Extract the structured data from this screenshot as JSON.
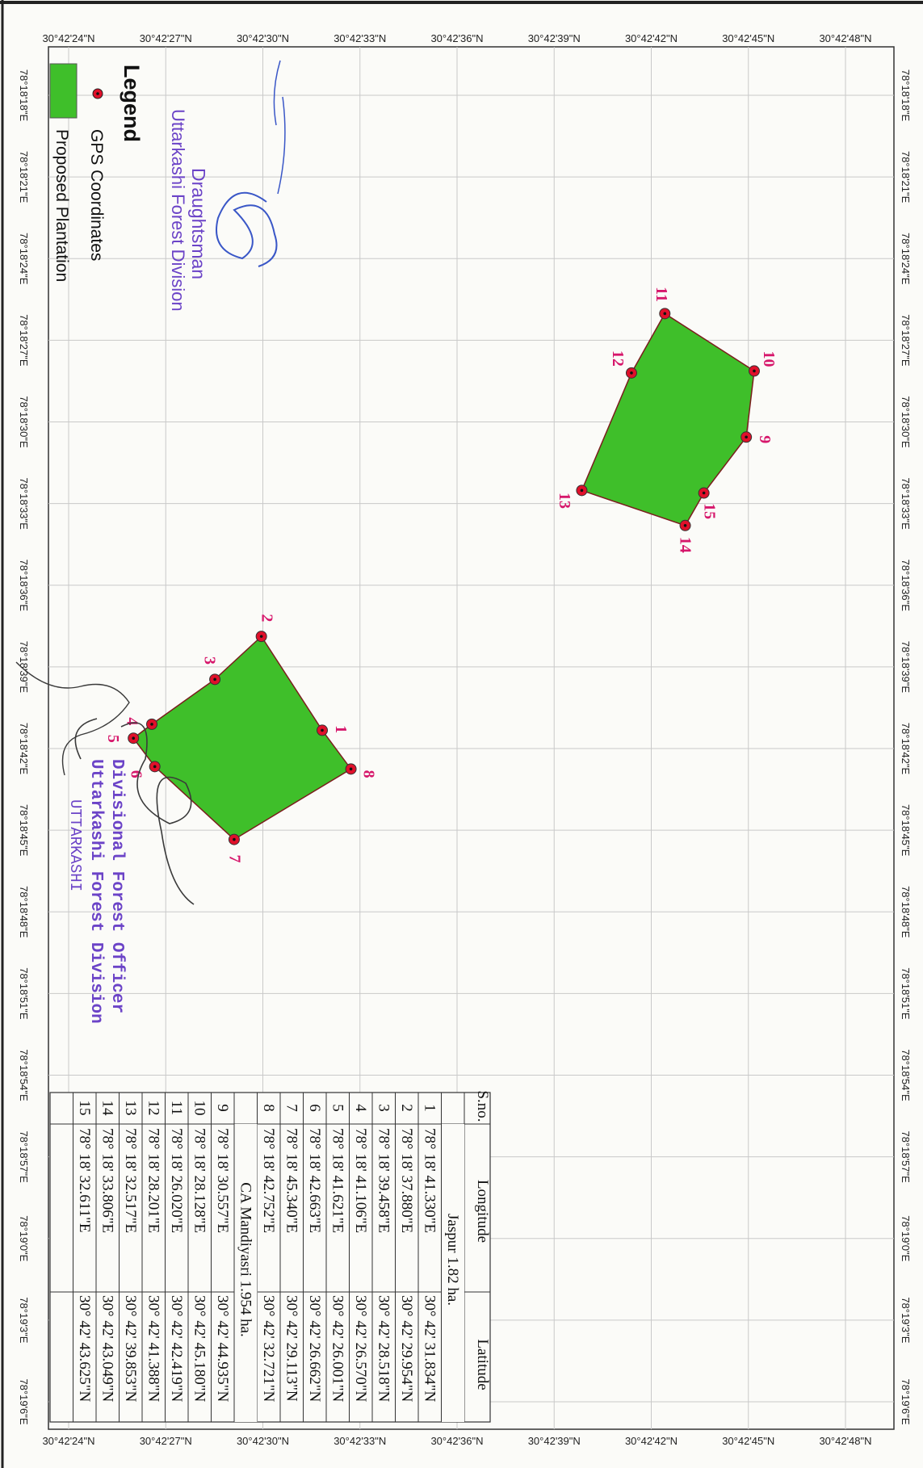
{
  "map": {
    "latitude_labels": [
      "30°42'24\"N",
      "30°42'27\"N",
      "30°42'30\"N",
      "30°42'33\"N",
      "30°42'36\"N",
      "30°42'39\"N",
      "30°42'42\"N",
      "30°42'45\"N",
      "30°42'48\"N"
    ],
    "longitude_labels": [
      "78°18'18\"E",
      "78°18'21\"E",
      "78°18'24\"E",
      "78°18'27\"E",
      "78°18'30\"E",
      "78°18'33\"E",
      "78°18'36\"E",
      "78°18'39\"E",
      "78°18'42\"E",
      "78°18'45\"E",
      "78°18'48\"E",
      "78°18'51\"E",
      "78°18'54\"E",
      "78°18'57\"E",
      "78°19'0\"E",
      "78°19'3\"E",
      "78°19'6\"E"
    ],
    "plantation_fill": "#3fbf2a",
    "plantation_stroke": "#7a1d1d",
    "point_color": "#e0102a",
    "label_color": "#d6176b"
  },
  "legend": {
    "title": "Legend",
    "items": [
      {
        "symbol": "point",
        "label": "GPS Coordinates"
      },
      {
        "symbol": "polygon",
        "label": "Proposed Plantation"
      }
    ]
  },
  "sites": [
    {
      "name": "Jaspur 1.82 ha.",
      "points": [
        {
          "no": "1",
          "longitude": "78° 18' 41.330\"E",
          "latitude": "30° 42' 31.834\"N"
        },
        {
          "no": "2",
          "longitude": "78° 18' 37.880\"E",
          "latitude": "30° 42' 29.954\"N"
        },
        {
          "no": "3",
          "longitude": "78° 18' 39.458\"E",
          "latitude": "30° 42' 28.518\"N"
        },
        {
          "no": "4",
          "longitude": "78° 18' 41.106\"E",
          "latitude": "30° 42' 26.570\"N"
        },
        {
          "no": "5",
          "longitude": "78° 18' 41.621\"E",
          "latitude": "30° 42' 26.001\"N"
        },
        {
          "no": "6",
          "longitude": "78° 18' 42.663\"E",
          "latitude": "30° 42' 26.662\"N"
        },
        {
          "no": "7",
          "longitude": "78° 18' 45.340\"E",
          "latitude": "30° 42' 29.113\"N"
        },
        {
          "no": "8",
          "longitude": "78° 18' 42.752\"E",
          "latitude": "30° 42' 32.721\"N"
        }
      ]
    },
    {
      "name": "CA Mandiyasri 1.954 ha.",
      "points": [
        {
          "no": "9",
          "longitude": "78° 18' 30.557\"E",
          "latitude": "30° 42' 44.935\"N"
        },
        {
          "no": "10",
          "longitude": "78° 18' 28.128\"E",
          "latitude": "30° 42' 45.180\"N"
        },
        {
          "no": "11",
          "longitude": "78° 18' 26.020\"E",
          "latitude": "30° 42' 42.419\"N"
        },
        {
          "no": "12",
          "longitude": "78° 18' 28.201\"E",
          "latitude": "30° 42' 41.388\"N"
        },
        {
          "no": "13",
          "longitude": "78° 18' 32.517\"E",
          "latitude": "30° 42' 39.853\"N"
        },
        {
          "no": "14",
          "longitude": "78° 18' 33.806\"E",
          "latitude": "30° 42' 43.049\"N"
        },
        {
          "no": "15",
          "longitude": "78° 18' 32.611\"E",
          "latitude": "30° 42' 43.625\"N"
        }
      ]
    }
  ],
  "table": {
    "headers": [
      "S.no.",
      "Longitude",
      "Latitude"
    ]
  },
  "stamps": {
    "stamp1": [
      "Draughtsman",
      "Uttarkashi Forest Division"
    ],
    "stamp2": [
      "Divisional Forest Officer",
      "Uttarkashi Forest Division",
      "UTTARKASHI"
    ]
  }
}
